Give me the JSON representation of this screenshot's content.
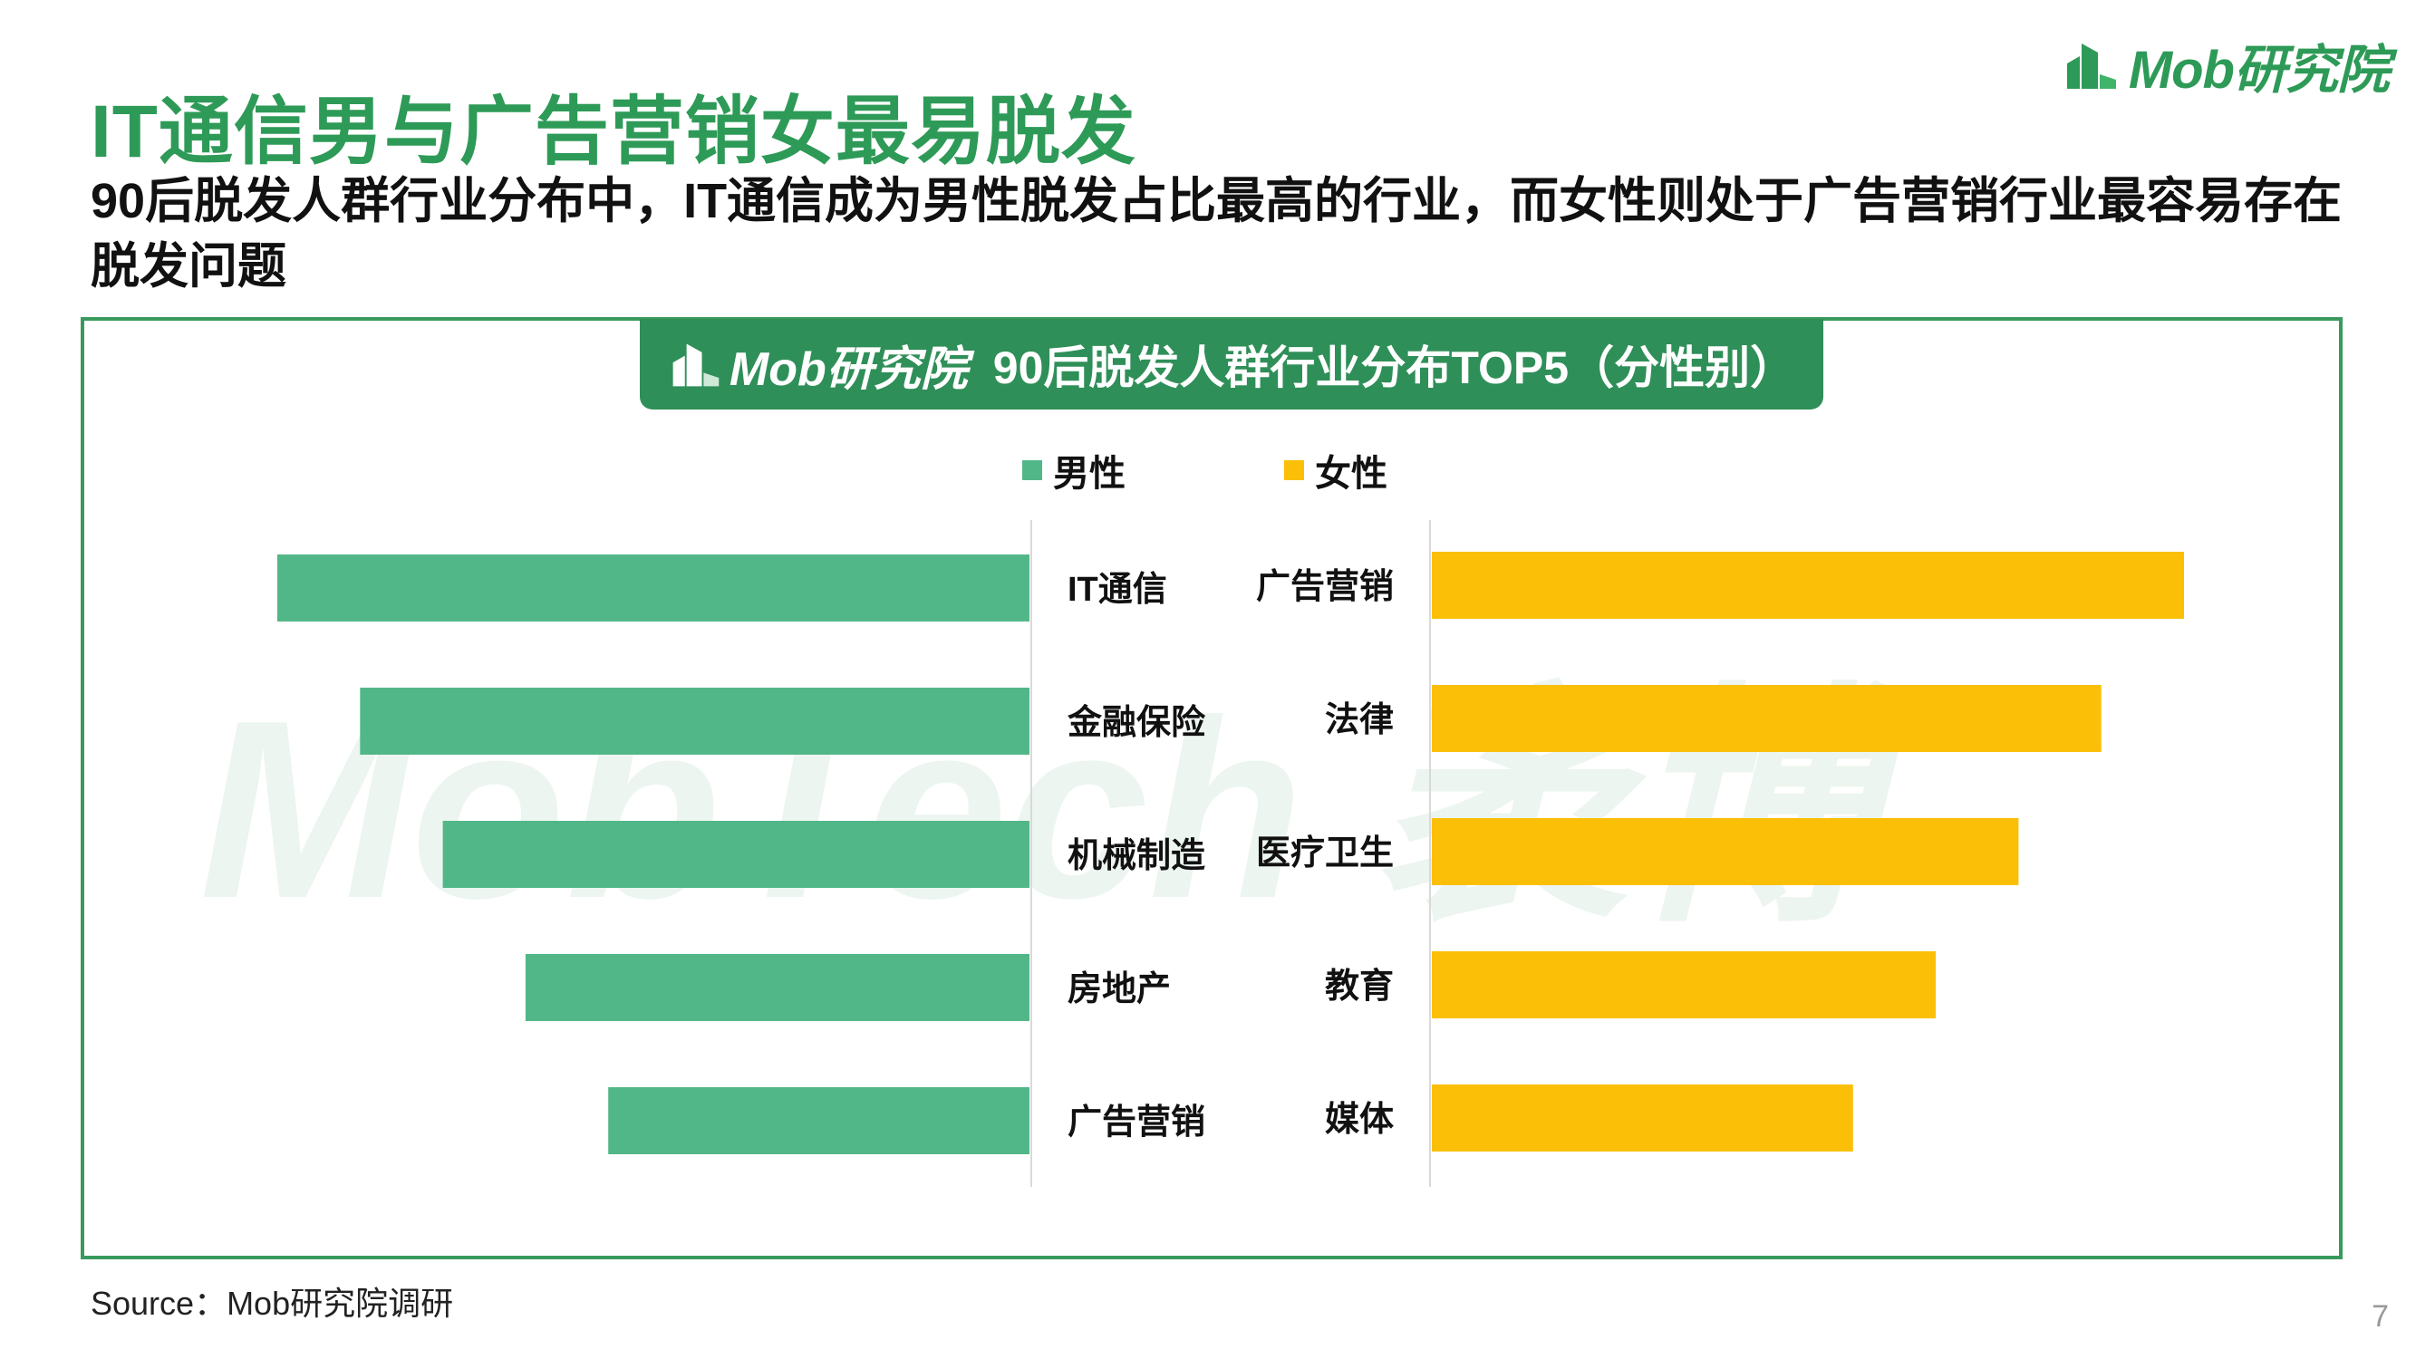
{
  "header": {
    "title": "IT通信男与广告营销女最易脱发",
    "subtitle": "90后脱发人群行业分布中，IT通信成为男性脱发占比最高的行业，而女性则处于广告营销行业最容易存在脱发问题"
  },
  "logo": {
    "text": "Mob研究院",
    "icon": "building-logo-icon"
  },
  "watermark": {
    "text": "MobTech 袤博"
  },
  "colors": {
    "male": "#52b788",
    "female": "#fbbf07",
    "accent": "#2e9a57",
    "banner": "#2f8f58"
  },
  "chart_data": {
    "type": "bar",
    "title": "90后脱发人群行业分布TOP5（分性别）",
    "legend": [
      "男性",
      "女性"
    ],
    "legend_position": "top-center",
    "series": [
      {
        "name": "男性",
        "categories": [
          "IT通信",
          "金融保险",
          "机械制造",
          "房地产",
          "广告营销"
        ],
        "values": [
          100,
          89,
          78,
          67,
          56
        ]
      },
      {
        "name": "女性",
        "categories": [
          "广告营销",
          "法律",
          "医疗卫生",
          "教育",
          "媒体"
        ],
        "values": [
          100,
          89,
          78,
          67,
          56
        ]
      }
    ]
  },
  "footer": {
    "source": "Source：Mob研究院调研",
    "page": "7"
  }
}
